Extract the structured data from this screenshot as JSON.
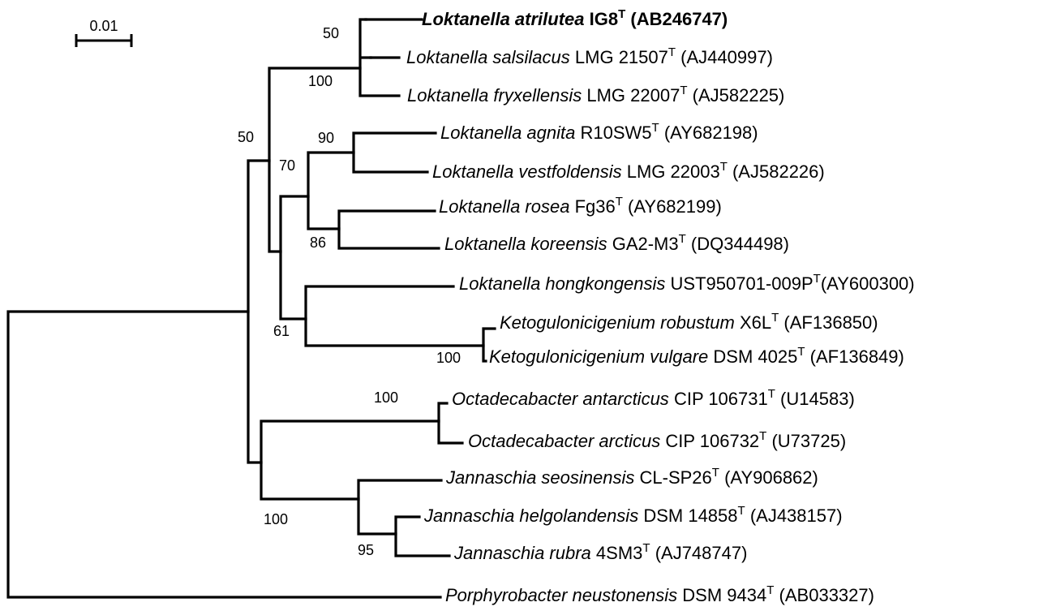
{
  "scale_bar": {
    "label": "0.01"
  },
  "taxa": [
    {
      "genus_species": "Loktanella atrilutea",
      "strain": "IG8",
      "type_mark": "T",
      "accession": "(AB246747)",
      "bold": true
    },
    {
      "genus_species": "Loktanella salsilacus",
      "strain": "LMG 21507",
      "type_mark": "T",
      "accession": "(AJ440997)"
    },
    {
      "genus_species": "Loktanella fryxellensis",
      "strain": "LMG 22007",
      "type_mark": "T",
      "accession": "(AJ582225)"
    },
    {
      "genus_species": "Loktanella agnita",
      "strain": "R10SW5",
      "type_mark": "T",
      "accession": "(AY682198)"
    },
    {
      "genus_species": "Loktanella vestfoldensis",
      "strain": "LMG 22003",
      "type_mark": "T",
      "accession": "(AJ582226)"
    },
    {
      "genus_species": "Loktanella rosea",
      "strain": "Fg36",
      "type_mark": "T",
      "accession": "(AY682199)"
    },
    {
      "genus_species": "Loktanella koreensis",
      "strain": "GA2-M3",
      "type_mark": "T",
      "accession": "(DQ344498)"
    },
    {
      "genus_species": "Loktanella hongkongensis",
      "strain": "UST950701-009P",
      "type_mark": "T",
      "accession": "(AY600300)"
    },
    {
      "genus_species": "Ketogulonicigenium robustum",
      "strain": "X6L",
      "type_mark": "T",
      "accession": "(AF136850)"
    },
    {
      "genus_species": "Ketogulonicigenium vulgare",
      "strain": "DSM 4025",
      "type_mark": "T",
      "accession": "(AF136849)"
    },
    {
      "genus_species": "Octadecabacter antarcticus",
      "strain": "CIP 106731",
      "type_mark": "T",
      "accession": "(U14583)"
    },
    {
      "genus_species": "Octadecabacter arcticus",
      "strain": "CIP 106732",
      "type_mark": "T",
      "accession": "(U73725)"
    },
    {
      "genus_species": "Jannaschia seosinensis",
      "strain": "CL-SP26",
      "type_mark": "T",
      "accession": "(AY906862)"
    },
    {
      "genus_species": "Jannaschia helgolandensis",
      "strain": "DSM 14858",
      "type_mark": "T",
      "accession": "(AJ438157)"
    },
    {
      "genus_species": "Jannaschia rubra",
      "strain": "4SM3",
      "type_mark": "T",
      "accession": "(AJ748747)"
    },
    {
      "genus_species": "Porphyrobacter neustonensis",
      "strain": "DSM 9434",
      "type_mark": "T",
      "accession": "(AB033327)"
    }
  ],
  "bootstrap": {
    "salsilacus_atrilutea": "50",
    "salsilacus_fryxellensis": "100",
    "loktanella_core": "50",
    "agnita_vestfoldensis": "90",
    "agnita_rosea_group": "70",
    "rosea_koreensis": "86",
    "hongkongensis_ketogulonicigenium": "61",
    "ketogulonicigenium": "100",
    "octadecabacter": "100",
    "octadecabacter_jannaschia": "100",
    "jannaschia_helgolandensis_rubra": "95"
  }
}
